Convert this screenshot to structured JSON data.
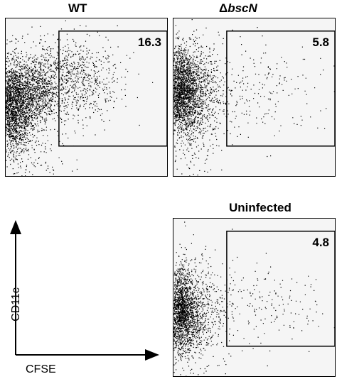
{
  "chart_data": [
    {
      "type": "scatter",
      "title": "WT",
      "gate_value": "16.3",
      "populations": [
        {
          "cx": 4,
          "cy": 45,
          "sx": 6,
          "sy": 14,
          "n": 2200
        },
        {
          "cx": 18,
          "cy": 52,
          "sx": 7,
          "sy": 10,
          "n": 700
        },
        {
          "cx": 38,
          "cy": 62,
          "sx": 16,
          "sy": 13,
          "n": 950
        },
        {
          "cx": 12,
          "cy": 30,
          "sx": 12,
          "sy": 25,
          "n": 350
        }
      ],
      "gate": {
        "x": [
          33,
          100
        ],
        "y": [
          19,
          92
        ]
      }
    },
    {
      "type": "scatter",
      "title_prefix": "Δ",
      "title_italic": "bscN",
      "gate_value": "5.8",
      "populations": [
        {
          "cx": 4,
          "cy": 55,
          "sx": 6,
          "sy": 13,
          "n": 2100
        },
        {
          "cx": 15,
          "cy": 52,
          "sx": 8,
          "sy": 15,
          "n": 550
        },
        {
          "cx": 50,
          "cy": 54,
          "sx": 22,
          "sy": 14,
          "n": 260
        },
        {
          "cx": 10,
          "cy": 35,
          "sx": 10,
          "sy": 25,
          "n": 300
        }
      ],
      "gate": {
        "x": [
          33,
          100
        ],
        "y": [
          19,
          92
        ]
      }
    },
    {
      "type": "scatter",
      "title": "Uninfected",
      "gate_value": "4.8",
      "populations": [
        {
          "cx": 4,
          "cy": 42,
          "sx": 5,
          "sy": 13,
          "n": 1800
        },
        {
          "cx": 14,
          "cy": 40,
          "sx": 8,
          "sy": 15,
          "n": 500
        },
        {
          "cx": 50,
          "cy": 46,
          "sx": 22,
          "sy": 14,
          "n": 220
        },
        {
          "cx": 10,
          "cy": 30,
          "sx": 10,
          "sy": 25,
          "n": 280
        }
      ],
      "gate": {
        "x": [
          33,
          100
        ],
        "y": [
          19,
          92
        ]
      }
    }
  ],
  "axes": {
    "xlabel": "CFSE",
    "ylabel": "CD11c",
    "xlim": [
      0,
      100
    ],
    "ylim": [
      0,
      100
    ],
    "arrow_color": "#000000"
  },
  "colors": {
    "dots": "#000000",
    "plot_bg": "#f5f5f5",
    "frame": "#000000"
  }
}
